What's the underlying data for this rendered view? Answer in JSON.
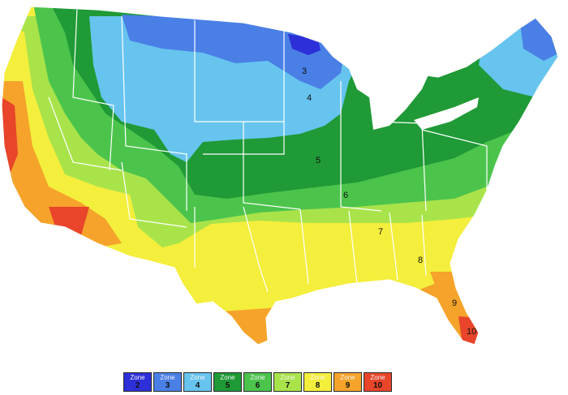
{
  "map": {
    "zone_labels": [
      {
        "text": "3",
        "zone": 3
      },
      {
        "text": "4",
        "zone": 4
      },
      {
        "text": "5",
        "zone": 5
      },
      {
        "text": "6",
        "zone": 6
      },
      {
        "text": "7",
        "zone": 7
      },
      {
        "text": "8",
        "zone": 8
      },
      {
        "text": "9",
        "zone": 9
      },
      {
        "text": "10",
        "zone": 10
      }
    ]
  },
  "legend": {
    "items": [
      {
        "word": "Zone",
        "number": "2",
        "color": "#2d2fd8"
      },
      {
        "word": "Zone",
        "number": "3",
        "color": "#4a7fe6"
      },
      {
        "word": "Zone",
        "number": "4",
        "color": "#66c4ee"
      },
      {
        "word": "Zone",
        "number": "5",
        "color": "#1f9a36"
      },
      {
        "word": "Zone",
        "number": "6",
        "color": "#4cc44c"
      },
      {
        "word": "Zone",
        "number": "7",
        "color": "#a9e34a"
      },
      {
        "word": "Zone",
        "number": "8",
        "color": "#f4ee3c"
      },
      {
        "word": "Zone",
        "number": "9",
        "color": "#f5a32a"
      },
      {
        "word": "Zone",
        "number": "10",
        "color": "#e8452a"
      }
    ]
  },
  "colors": {
    "water": "#ffffff",
    "border_lines": "#ffffff"
  }
}
